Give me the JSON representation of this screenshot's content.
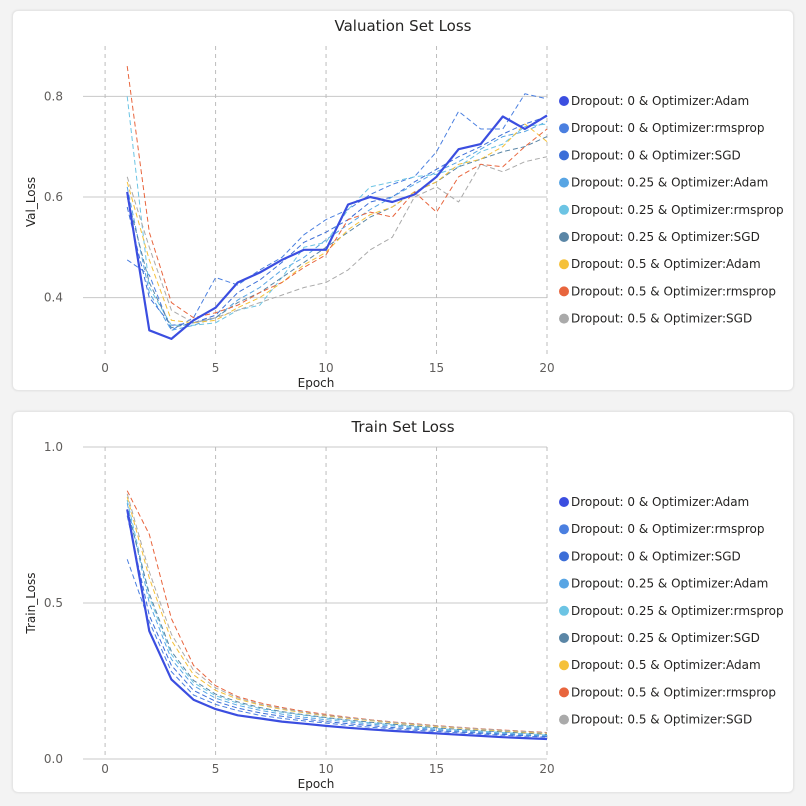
{
  "chart_data": [
    {
      "type": "line",
      "title": "Valuation Set Loss",
      "xlabel": "Epoch",
      "ylabel": "Val_Loss",
      "xlim": [
        -1,
        20
      ],
      "ylim": [
        0.28,
        0.9
      ],
      "xticks": [
        0,
        5,
        10,
        15,
        20
      ],
      "yticks": [
        0.4,
        0.6,
        0.8
      ],
      "yticklabels": [
        "0.4",
        "0.6",
        "0.8"
      ],
      "legend_position": "right",
      "x": [
        1,
        2,
        3,
        4,
        5,
        6,
        7,
        8,
        9,
        10,
        11,
        12,
        13,
        14,
        15,
        16,
        17,
        18,
        19,
        20
      ],
      "series": [
        {
          "name": "Dropout: 0 & Optimizer:Adam",
          "color": "#3b4ee0",
          "style": "solid",
          "values": [
            0.61,
            0.335,
            0.318,
            0.355,
            0.38,
            0.43,
            0.45,
            0.475,
            0.495,
            0.495,
            0.585,
            0.6,
            0.59,
            0.605,
            0.64,
            0.695,
            0.705,
            0.76,
            0.735,
            0.762
          ]
        },
        {
          "name": "Dropout: 0 & Optimizer:rmsprop",
          "color": "#4a7fe0",
          "style": "dashed",
          "values": [
            0.475,
            0.445,
            0.335,
            0.36,
            0.44,
            0.425,
            0.455,
            0.48,
            0.525,
            0.555,
            0.575,
            0.605,
            0.625,
            0.64,
            0.69,
            0.77,
            0.735,
            0.735,
            0.805,
            0.795
          ]
        },
        {
          "name": "Dropout: 0 & Optimizer:SGD",
          "color": "#3c6ed8",
          "style": "dashed",
          "values": [
            0.58,
            0.4,
            0.345,
            0.35,
            0.365,
            0.41,
            0.435,
            0.47,
            0.51,
            0.53,
            0.555,
            0.59,
            0.6,
            0.63,
            0.655,
            0.68,
            0.7,
            0.725,
            0.745,
            0.76
          ]
        },
        {
          "name": "Dropout: 0.25 & Optimizer:Adam",
          "color": "#58a5e4",
          "style": "dashed",
          "values": [
            0.62,
            0.41,
            0.335,
            0.345,
            0.36,
            0.395,
            0.42,
            0.455,
            0.48,
            0.515,
            0.545,
            0.575,
            0.6,
            0.625,
            0.65,
            0.67,
            0.695,
            0.72,
            0.73,
            0.75
          ]
        },
        {
          "name": "Dropout: 0.25 & Optimizer:rmsprop",
          "color": "#6cc4e4",
          "style": "dashed",
          "values": [
            0.8,
            0.42,
            0.345,
            0.345,
            0.35,
            0.375,
            0.385,
            0.44,
            0.5,
            0.51,
            0.575,
            0.62,
            0.63,
            0.64,
            0.645,
            0.66,
            0.69,
            0.705,
            0.74,
            0.745
          ]
        },
        {
          "name": "Dropout: 0.25 & Optimizer:SGD",
          "color": "#5a86a6",
          "style": "dashed",
          "values": [
            0.6,
            0.43,
            0.34,
            0.35,
            0.36,
            0.39,
            0.41,
            0.44,
            0.47,
            0.5,
            0.53,
            0.56,
            0.58,
            0.61,
            0.63,
            0.66,
            0.675,
            0.69,
            0.7,
            0.72
          ]
        },
        {
          "name": "Dropout: 0.5 & Optimizer:Adam",
          "color": "#f5c13a",
          "style": "dashed",
          "values": [
            0.63,
            0.475,
            0.355,
            0.35,
            0.355,
            0.38,
            0.4,
            0.43,
            0.465,
            0.49,
            0.535,
            0.565,
            0.58,
            0.61,
            0.63,
            0.665,
            0.675,
            0.7,
            0.745,
            0.71
          ]
        },
        {
          "name": "Dropout: 0.5 & Optimizer:rmsprop",
          "color": "#e8653d",
          "style": "dashed",
          "values": [
            0.86,
            0.53,
            0.39,
            0.36,
            0.37,
            0.385,
            0.41,
            0.43,
            0.46,
            0.485,
            0.555,
            0.57,
            0.56,
            0.61,
            0.57,
            0.64,
            0.665,
            0.66,
            0.7,
            0.735
          ]
        },
        {
          "name": "Dropout: 0.5 & Optimizer:SGD",
          "color": "#aaaaaa",
          "style": "dashed",
          "values": [
            0.64,
            0.5,
            0.375,
            0.35,
            0.36,
            0.375,
            0.39,
            0.405,
            0.42,
            0.43,
            0.455,
            0.495,
            0.52,
            0.6,
            0.62,
            0.59,
            0.665,
            0.65,
            0.67,
            0.68
          ]
        }
      ]
    },
    {
      "type": "line",
      "title": "Train Set Loss",
      "xlabel": "Epoch",
      "ylabel": "Train_Loss",
      "xlim": [
        -1,
        20
      ],
      "ylim": [
        0,
        1.0
      ],
      "xticks": [
        0,
        5,
        10,
        15,
        20
      ],
      "yticks": [
        0,
        0.5,
        1.0
      ],
      "yticklabels": [
        "0.0",
        "0.5",
        "1.0"
      ],
      "legend_position": "right",
      "x": [
        1,
        2,
        3,
        4,
        5,
        6,
        7,
        8,
        9,
        10,
        11,
        12,
        13,
        14,
        15,
        16,
        17,
        18,
        19,
        20
      ],
      "series": [
        {
          "name": "Dropout: 0 & Optimizer:Adam",
          "color": "#3b4ee0",
          "style": "solid",
          "values": [
            0.8,
            0.41,
            0.255,
            0.19,
            0.16,
            0.14,
            0.13,
            0.12,
            0.113,
            0.106,
            0.1,
            0.095,
            0.09,
            0.086,
            0.082,
            0.078,
            0.074,
            0.07,
            0.067,
            0.064
          ]
        },
        {
          "name": "Dropout: 0 & Optimizer:rmsprop",
          "color": "#4a7fe0",
          "style": "dashed",
          "values": [
            0.64,
            0.44,
            0.28,
            0.205,
            0.175,
            0.155,
            0.14,
            0.13,
            0.122,
            0.115,
            0.108,
            0.102,
            0.097,
            0.092,
            0.088,
            0.084,
            0.08,
            0.076,
            0.073,
            0.07
          ]
        },
        {
          "name": "Dropout: 0 & Optimizer:SGD",
          "color": "#3c6ed8",
          "style": "dashed",
          "values": [
            0.78,
            0.46,
            0.3,
            0.22,
            0.185,
            0.163,
            0.148,
            0.137,
            0.128,
            0.12,
            0.113,
            0.107,
            0.101,
            0.096,
            0.091,
            0.087,
            0.083,
            0.079,
            0.075,
            0.072
          ]
        },
        {
          "name": "Dropout: 0.25 & Optimizer:Adam",
          "color": "#58a5e4",
          "style": "dashed",
          "values": [
            0.82,
            0.5,
            0.32,
            0.235,
            0.195,
            0.172,
            0.156,
            0.144,
            0.134,
            0.126,
            0.119,
            0.112,
            0.106,
            0.1,
            0.095,
            0.09,
            0.086,
            0.082,
            0.078,
            0.075
          ]
        },
        {
          "name": "Dropout: 0.25 & Optimizer:rmsprop",
          "color": "#6cc4e4",
          "style": "dashed",
          "values": [
            0.83,
            0.52,
            0.335,
            0.245,
            0.203,
            0.179,
            0.162,
            0.15,
            0.14,
            0.131,
            0.123,
            0.116,
            0.11,
            0.104,
            0.098,
            0.093,
            0.089,
            0.085,
            0.081,
            0.077
          ]
        },
        {
          "name": "Dropout: 0.25 & Optimizer:SGD",
          "color": "#5a86a6",
          "style": "dashed",
          "values": [
            0.8,
            0.53,
            0.345,
            0.252,
            0.208,
            0.183,
            0.165,
            0.152,
            0.142,
            0.133,
            0.125,
            0.118,
            0.112,
            0.106,
            0.1,
            0.095,
            0.091,
            0.087,
            0.083,
            0.079
          ]
        },
        {
          "name": "Dropout: 0.5 & Optimizer:Adam",
          "color": "#f5c13a",
          "style": "dashed",
          "values": [
            0.84,
            0.58,
            0.38,
            0.27,
            0.22,
            0.192,
            0.173,
            0.159,
            0.148,
            0.138,
            0.13,
            0.123,
            0.116,
            0.11,
            0.104,
            0.099,
            0.094,
            0.09,
            0.086,
            0.082
          ]
        },
        {
          "name": "Dropout: 0.5 & Optimizer:rmsprop",
          "color": "#e8653d",
          "style": "dashed",
          "values": [
            0.86,
            0.72,
            0.45,
            0.3,
            0.235,
            0.2,
            0.18,
            0.165,
            0.153,
            0.143,
            0.134,
            0.126,
            0.119,
            0.113,
            0.107,
            0.102,
            0.097,
            0.093,
            0.089,
            0.085
          ]
        },
        {
          "name": "Dropout: 0.5 & Optimizer:SGD",
          "color": "#aaaaaa",
          "style": "dashed",
          "values": [
            0.85,
            0.6,
            0.4,
            0.285,
            0.228,
            0.196,
            0.176,
            0.162,
            0.15,
            0.14,
            0.132,
            0.125,
            0.118,
            0.112,
            0.106,
            0.101,
            0.096,
            0.092,
            0.088,
            0.084
          ]
        }
      ]
    }
  ]
}
